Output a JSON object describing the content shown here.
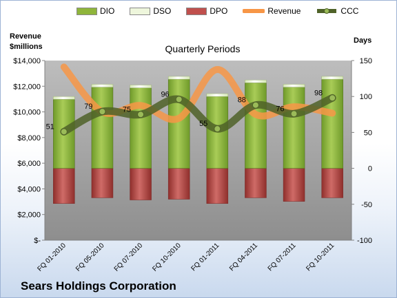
{
  "legend": {
    "dio": "DIO",
    "dso": "DSO",
    "dpo": "DPO",
    "revenue": "Revenue",
    "ccc": "CCC"
  },
  "left_axis_title": [
    "Revenue",
    "$millions"
  ],
  "right_axis_title": "Days",
  "plot_title": "Quarterly Periods",
  "company": "Sears Holdings Corporation",
  "colors": {
    "dio": "#8fb53b",
    "dso": "#e8f2d2",
    "dpo": "#c0504d",
    "revenue": "#f79646",
    "ccc": "#4f6228",
    "plot_bg": "#a6a6a6"
  },
  "chart_data": {
    "type": "bar",
    "categories": [
      "FQ 01-2010",
      "FQ 05-2010",
      "FQ 07-2010",
      "FQ 10-2010",
      "FQ 01-2011",
      "FQ 04-2011",
      "FQ 07-2011",
      "FQ 10-2011"
    ],
    "series": [
      {
        "name": "DIO",
        "type": "bar",
        "axis": "right",
        "values": [
          96,
          113,
          112,
          124,
          100,
          119,
          113,
          124
        ]
      },
      {
        "name": "DSO",
        "type": "bar",
        "axis": "right",
        "values": [
          4,
          4,
          4,
          4,
          4,
          4,
          4,
          4
        ]
      },
      {
        "name": "DPO",
        "type": "bar",
        "axis": "right",
        "values": [
          -49,
          -41,
          -44,
          -43,
          -49,
          -41,
          -46,
          -41
        ]
      },
      {
        "name": "Revenue",
        "type": "line",
        "axis": "left",
        "values": [
          13500,
          10000,
          10500,
          9500,
          13300,
          9800,
          10400,
          9900
        ]
      },
      {
        "name": "CCC",
        "type": "line",
        "axis": "right",
        "values": [
          51,
          79,
          75,
          96,
          55,
          88,
          76,
          98
        ]
      }
    ],
    "data_labels": [
      "51",
      "79",
      "75",
      "96",
      "55",
      "88",
      "76",
      "98"
    ],
    "left_axis": {
      "ylim": [
        0,
        14000
      ],
      "ticks": [
        "$-",
        "$2,000",
        "$4,000",
        "$6,000",
        "$8,000",
        "$10,000",
        "$12,000",
        "$14,000"
      ]
    },
    "right_axis": {
      "ylim": [
        -100,
        150
      ],
      "ticks": [
        "-100",
        "-50",
        "0",
        "50",
        "100",
        "150"
      ]
    },
    "grid": false,
    "legend_position": "top"
  }
}
